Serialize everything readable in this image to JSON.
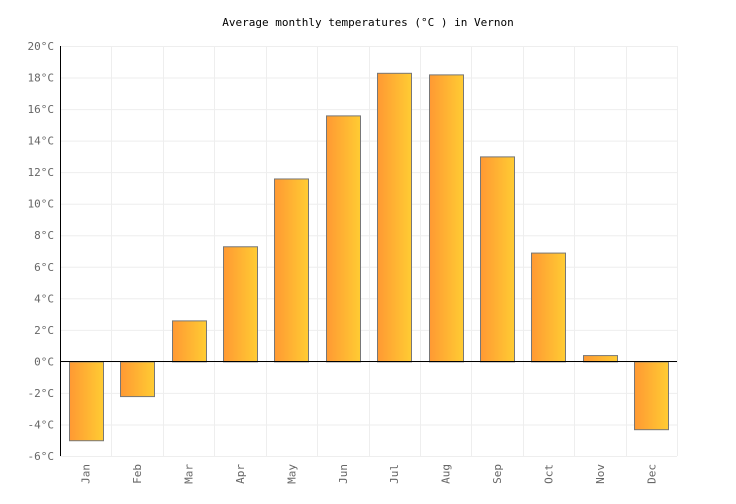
{
  "chart_data": {
    "type": "bar",
    "title": "Average monthly temperatures (°C ) in Vernon",
    "xlabel": "",
    "ylabel": "",
    "categories": [
      "Jan",
      "Feb",
      "Mar",
      "Apr",
      "May",
      "Jun",
      "Jul",
      "Aug",
      "Sep",
      "Oct",
      "Nov",
      "Dec"
    ],
    "values": [
      -5.0,
      -2.2,
      2.6,
      7.3,
      11.6,
      15.6,
      18.3,
      18.2,
      13.0,
      6.9,
      0.4,
      -4.3
    ],
    "ylim": [
      -6,
      20
    ],
    "yticks": [
      -6,
      -4,
      -2,
      0,
      2,
      4,
      6,
      8,
      10,
      12,
      14,
      16,
      18,
      20
    ],
    "ytick_labels": [
      "-6°C",
      "-4°C",
      "-2°C",
      "0°C",
      "2°C",
      "4°C",
      "6°C",
      "8°C",
      "10°C",
      "12°C",
      "14°C",
      "16°C",
      "18°C",
      "20°C"
    ],
    "grid": true,
    "legend": "none",
    "colors": {
      "bar_start": "#ff9933",
      "bar_end": "#ffcc33",
      "bar_stroke": "#777777",
      "grid": "#eeeeee",
      "axis": "#000000"
    }
  }
}
